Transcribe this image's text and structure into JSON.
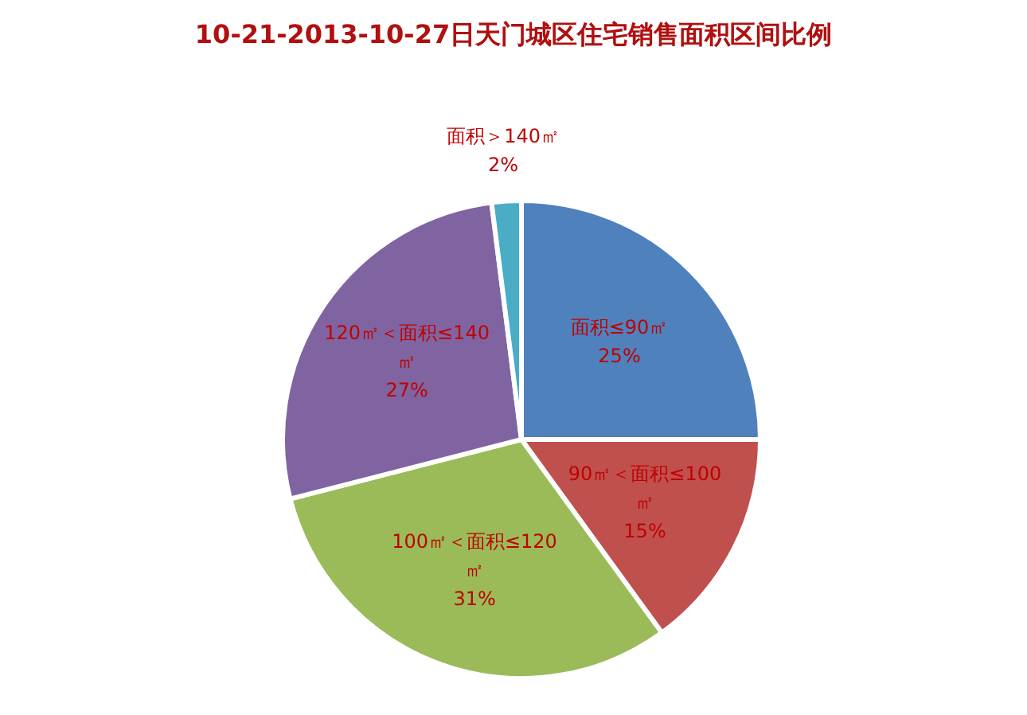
{
  "chart_data": {
    "type": "pie",
    "title": "10-21-2013-10-27日天门城区住宅销售面积区间比例",
    "categories": [
      "面积≤90㎡",
      "90㎡＜面积≤100㎡",
      "100㎡＜面积≤120㎡",
      "120㎡＜面积≤140㎡",
      "面积＞140㎡"
    ],
    "values": [
      25,
      15,
      31,
      27,
      2
    ],
    "colors": [
      "#4f81bd",
      "#c0504d",
      "#9bbb59",
      "#8064a2",
      "#4bacc6"
    ],
    "value_labels": [
      "25%",
      "15%",
      "31%",
      "27%",
      "2%"
    ]
  }
}
